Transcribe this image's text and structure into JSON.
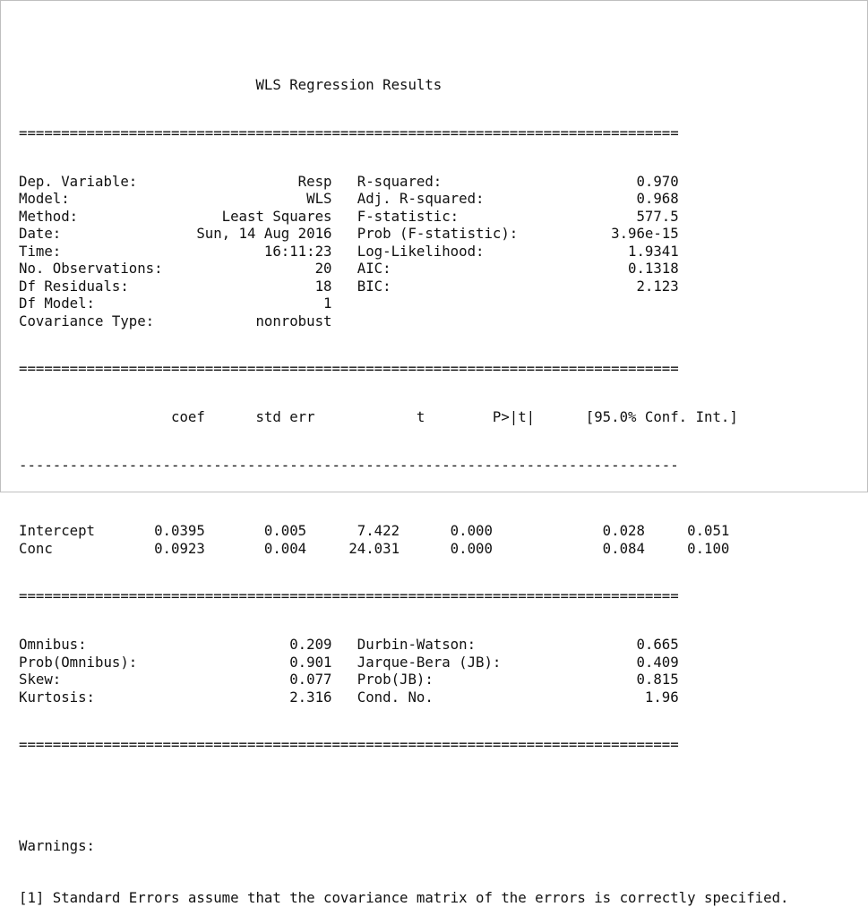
{
  "title": "WLS Regression Results",
  "rule_double": "==============================================================================",
  "rule_dashes": "------------------------------------------------------------------------------",
  "summary_rows": [
    {
      "left_label": "Dep. Variable:",
      "left_value": "Resp",
      "right_label": "R-squared:",
      "right_value": "0.970"
    },
    {
      "left_label": "Model:",
      "left_value": "WLS",
      "right_label": "Adj. R-squared:",
      "right_value": "0.968"
    },
    {
      "left_label": "Method:",
      "left_value": "Least Squares",
      "right_label": "F-statistic:",
      "right_value": "577.5"
    },
    {
      "left_label": "Date:",
      "left_value": "Sun, 14 Aug 2016",
      "right_label": "Prob (F-statistic):",
      "right_value": "3.96e-15"
    },
    {
      "left_label": "Time:",
      "left_value": "16:11:23",
      "right_label": "Log-Likelihood:",
      "right_value": "1.9341"
    },
    {
      "left_label": "No. Observations:",
      "left_value": "20",
      "right_label": "AIC:",
      "right_value": "0.1318"
    },
    {
      "left_label": "Df Residuals:",
      "left_value": "18",
      "right_label": "BIC:",
      "right_value": "2.123"
    },
    {
      "left_label": "Df Model:",
      "left_value": "1",
      "right_label": "",
      "right_value": ""
    },
    {
      "left_label": "Covariance Type:",
      "left_value": "nonrobust",
      "right_label": "",
      "right_value": ""
    }
  ],
  "coef_header": [
    "coef",
    "std err",
    "t",
    "P>|t|",
    "[95.0% Conf.",
    "Int.]"
  ],
  "coef_rows": [
    {
      "name": "Intercept",
      "coef": "0.0395",
      "std_err": "0.005",
      "t": "7.422",
      "p": "0.000",
      "ci_low": "0.028",
      "ci_high": "0.051"
    },
    {
      "name": "Conc",
      "coef": "0.0923",
      "std_err": "0.004",
      "t": "24.031",
      "p": "0.000",
      "ci_low": "0.084",
      "ci_high": "0.100"
    }
  ],
  "diag_rows": [
    {
      "left_label": "Omnibus:",
      "left_value": "0.209",
      "right_label": "Durbin-Watson:",
      "right_value": "0.665"
    },
    {
      "left_label": "Prob(Omnibus):",
      "left_value": "0.901",
      "right_label": "Jarque-Bera (JB):",
      "right_value": "0.409"
    },
    {
      "left_label": "Skew:",
      "left_value": "0.077",
      "right_label": "Prob(JB):",
      "right_value": "0.815"
    },
    {
      "left_label": "Kurtosis:",
      "left_value": "2.316",
      "right_label": "Cond. No.",
      "right_value": "1.96"
    }
  ],
  "warnings_heading": "Warnings:",
  "warnings": [
    "[1] Standard Errors assume that the covariance matrix of the errors is correctly specified."
  ]
}
